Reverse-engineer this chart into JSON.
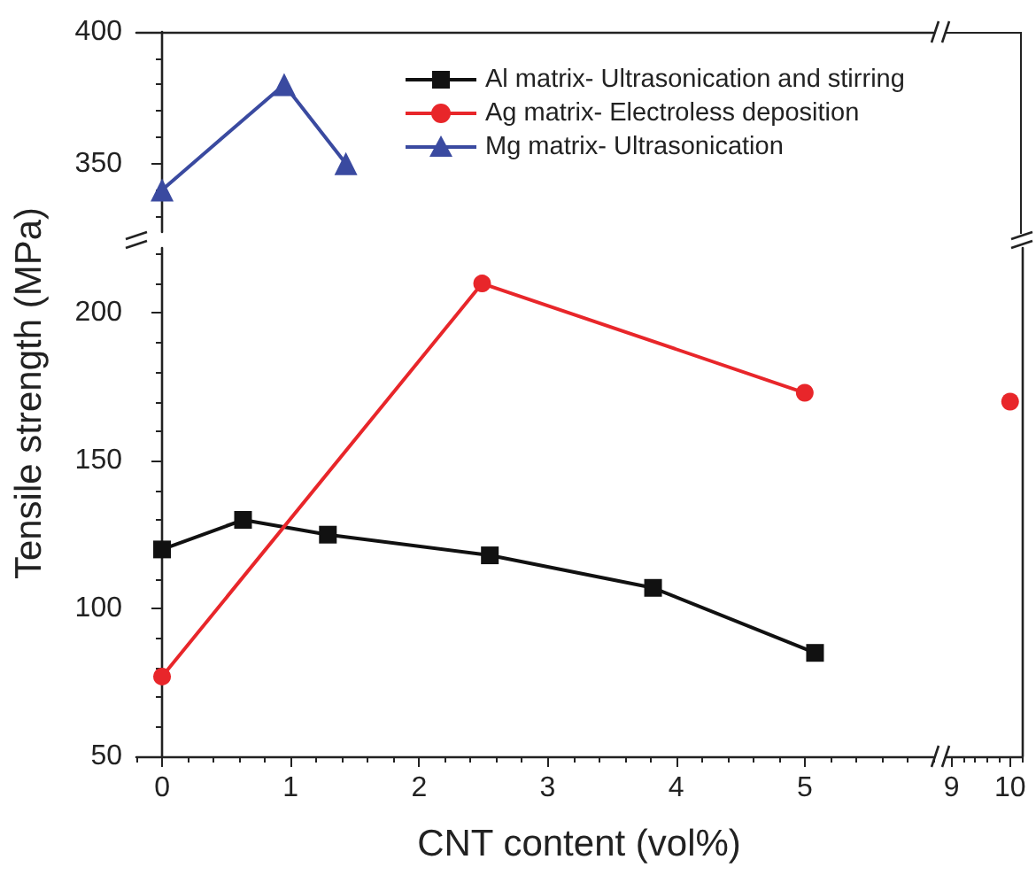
{
  "chart_data": [
    {
      "type": "line",
      "xlim": [
        -0.2,
        6
      ],
      "ylim": [
        324,
        400
      ],
      "yticks": [
        350,
        400
      ],
      "tick_labels": "y",
      "legend": "right",
      "series": [
        {
          "name": "Mg matrix- Ultrasonication",
          "color": "#3a4aa0",
          "marker": "triangle",
          "x": [
            0,
            0.95,
            1.43
          ],
          "values": [
            340,
            380,
            350
          ]
        }
      ]
    },
    {
      "type": "line",
      "xlabel": "CNT content (vol%)",
      "ylabel": "Tensile strength (MPa)",
      "legend": "top right",
      "xlim": [
        -0.2,
        6
      ],
      "xticks": [
        0,
        1,
        2,
        3,
        4,
        5
      ],
      "ylim": [
        50,
        222
      ],
      "yticks": [
        50,
        100,
        150,
        200
      ],
      "series": [
        {
          "name": "Al matrix- Ultrasonication and stirring",
          "color": "#111111",
          "marker": "square",
          "x": [
            0,
            0.63,
            1.29,
            2.55,
            3.82,
            5.08
          ],
          "values": [
            120,
            130,
            125,
            118,
            107,
            85
          ]
        },
        {
          "name": "Ag matrix- Electroless deposition",
          "color": "#e8262a",
          "marker": "circle",
          "x": [
            0,
            2.49,
            5.0
          ],
          "values": [
            77,
            210,
            173
          ]
        }
      ]
    },
    {
      "type": "line",
      "xlim": [
        8.9,
        10.2
      ],
      "xticks": [
        9,
        10
      ],
      "ylim": [
        50,
        222
      ],
      "tick_labels": "x",
      "series": [
        {
          "color": "#e8262a",
          "marker": "circle",
          "x": [
            10
          ],
          "values": [
            170
          ]
        }
      ]
    }
  ]
}
